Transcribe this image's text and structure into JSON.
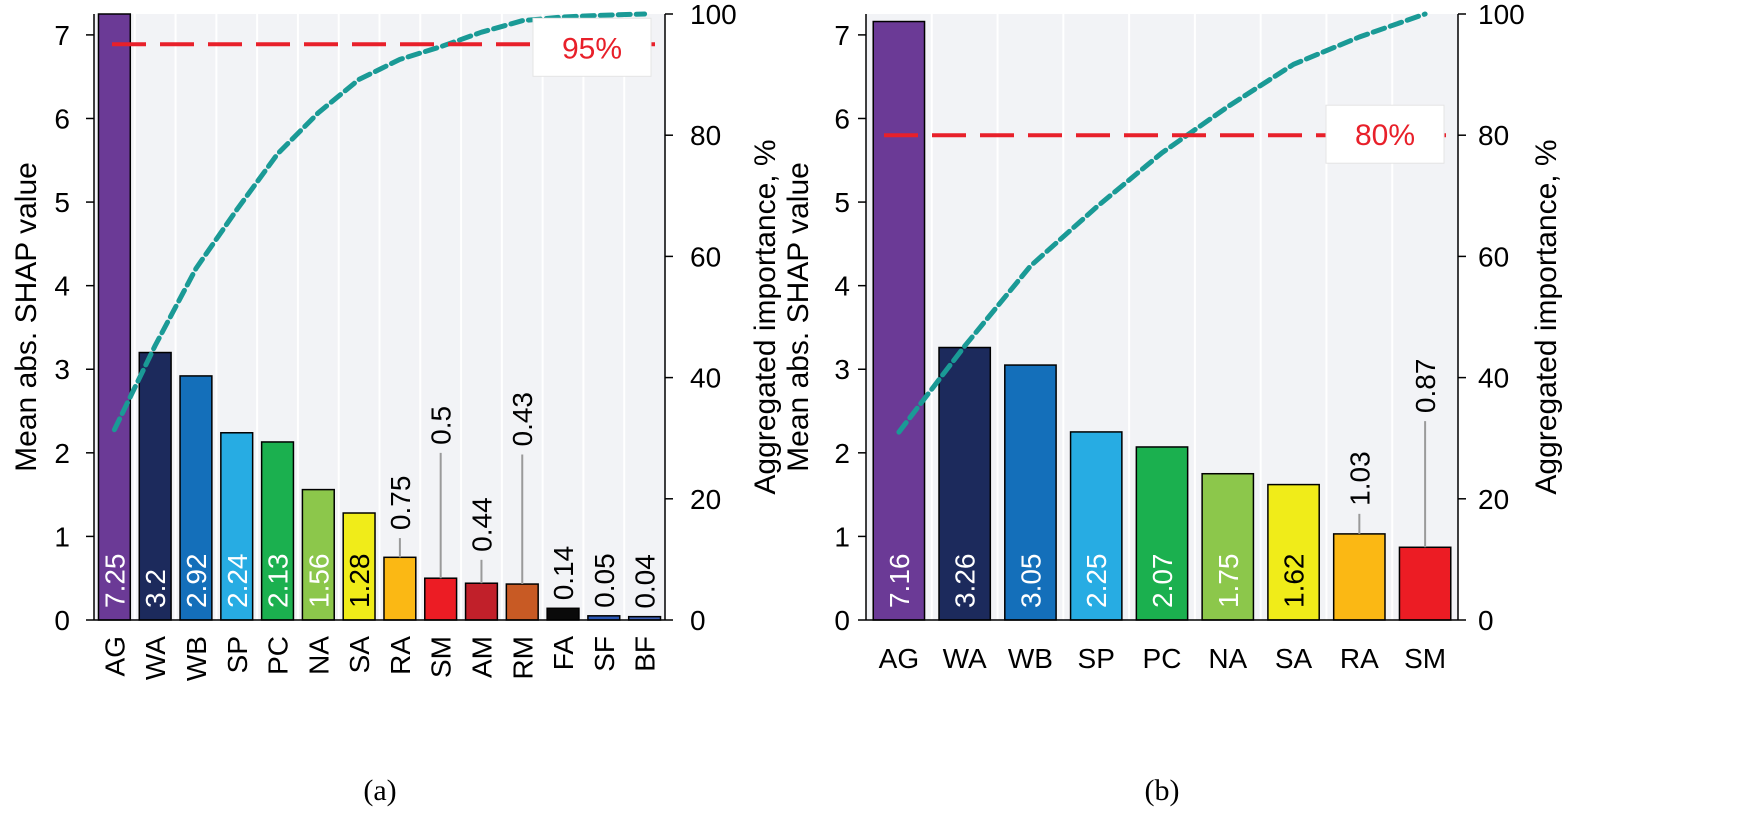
{
  "colors": {
    "plot_bg": "#f2f3f6",
    "grid": "#ffffff",
    "cumulative_line": "#1a9a96",
    "threshold_line": "#e8202a",
    "leader_line": "#9a9a9a",
    "bar_outline": "#000000"
  },
  "chart_data": [
    {
      "type": "bar",
      "caption": "(a)",
      "ylabel_left": "Mean abs. SHAP value",
      "ylabel_right": "Aggregated importance, %",
      "ylim": [
        0,
        7.25
      ],
      "yticks_left": [
        0,
        1,
        2,
        3,
        4,
        5,
        6,
        7
      ],
      "ylim_right": [
        0,
        100
      ],
      "yticks_right": [
        0,
        20,
        40,
        60,
        80,
        100
      ],
      "categories": [
        "AG",
        "WA",
        "WB",
        "SP",
        "PC",
        "NA",
        "SA",
        "RA",
        "SM",
        "AM",
        "RM",
        "FA",
        "SF",
        "BF"
      ],
      "values": [
        7.25,
        3.2,
        2.92,
        2.24,
        2.13,
        1.56,
        1.28,
        0.75,
        0.5,
        0.44,
        0.43,
        0.14,
        0.05,
        0.04
      ],
      "value_labels": [
        "7.25",
        "3.2",
        "2.92",
        "2.24",
        "2.13",
        "1.56",
        "1.28",
        "0.75",
        "0.5",
        "0.44",
        "0.43",
        "0.14",
        "0.05",
        "0.04"
      ],
      "label_inside": [
        true,
        true,
        true,
        true,
        true,
        true,
        true,
        false,
        false,
        false,
        false,
        false,
        false,
        false
      ],
      "label_dark": [
        false,
        false,
        false,
        false,
        false,
        false,
        true,
        false,
        false,
        false,
        false,
        false,
        false,
        false
      ],
      "bar_colors": [
        "#6b3a96",
        "#1c2a5c",
        "#146fba",
        "#27ace3",
        "#1bb04f",
        "#8cc74b",
        "#f0ec19",
        "#fbb814",
        "#ec1c24",
        "#c1202a",
        "#c85a24",
        "#0a0a0a",
        "#2a56b3",
        "#3d5fb3"
      ],
      "cumulative": {
        "name": "Aggregated importance",
        "values": [
          31.4,
          45.3,
          58.0,
          67.7,
          76.9,
          83.7,
          89.2,
          92.5,
          94.6,
          97.0,
          98.9,
          99.5,
          99.8,
          100.0
        ]
      },
      "threshold": {
        "value": 95,
        "label": "95%"
      }
    },
    {
      "type": "bar",
      "caption": "(b)",
      "ylabel_left": "Mean abs. SHAP value",
      "ylabel_right": "Aggregated importance, %",
      "ylim": [
        0,
        7.25
      ],
      "yticks_left": [
        0,
        1,
        2,
        3,
        4,
        5,
        6,
        7
      ],
      "ylim_right": [
        0,
        100
      ],
      "yticks_right": [
        0,
        20,
        40,
        60,
        80,
        100
      ],
      "categories": [
        "AG",
        "WA",
        "WB",
        "SP",
        "PC",
        "NA",
        "SA",
        "RA",
        "SM"
      ],
      "values": [
        7.16,
        3.26,
        3.05,
        2.25,
        2.07,
        1.75,
        1.62,
        1.03,
        0.87
      ],
      "value_labels": [
        "7.16",
        "3.26",
        "3.05",
        "2.25",
        "2.07",
        "1.75",
        "1.62",
        "1.03",
        "0.87"
      ],
      "label_inside": [
        true,
        true,
        true,
        true,
        true,
        true,
        true,
        false,
        false
      ],
      "label_dark": [
        false,
        false,
        false,
        false,
        false,
        false,
        true,
        false,
        false
      ],
      "bar_colors": [
        "#6b3a96",
        "#1c2a5c",
        "#146fba",
        "#27ace3",
        "#1bb04f",
        "#8cc74b",
        "#f0ec19",
        "#fbb814",
        "#ec1c24"
      ],
      "cumulative": {
        "name": "Aggregated importance",
        "values": [
          31.0,
          45.2,
          58.4,
          68.1,
          77.1,
          84.7,
          91.7,
          96.2,
          100.0
        ]
      },
      "threshold": {
        "value": 80,
        "label": "80%"
      }
    }
  ]
}
